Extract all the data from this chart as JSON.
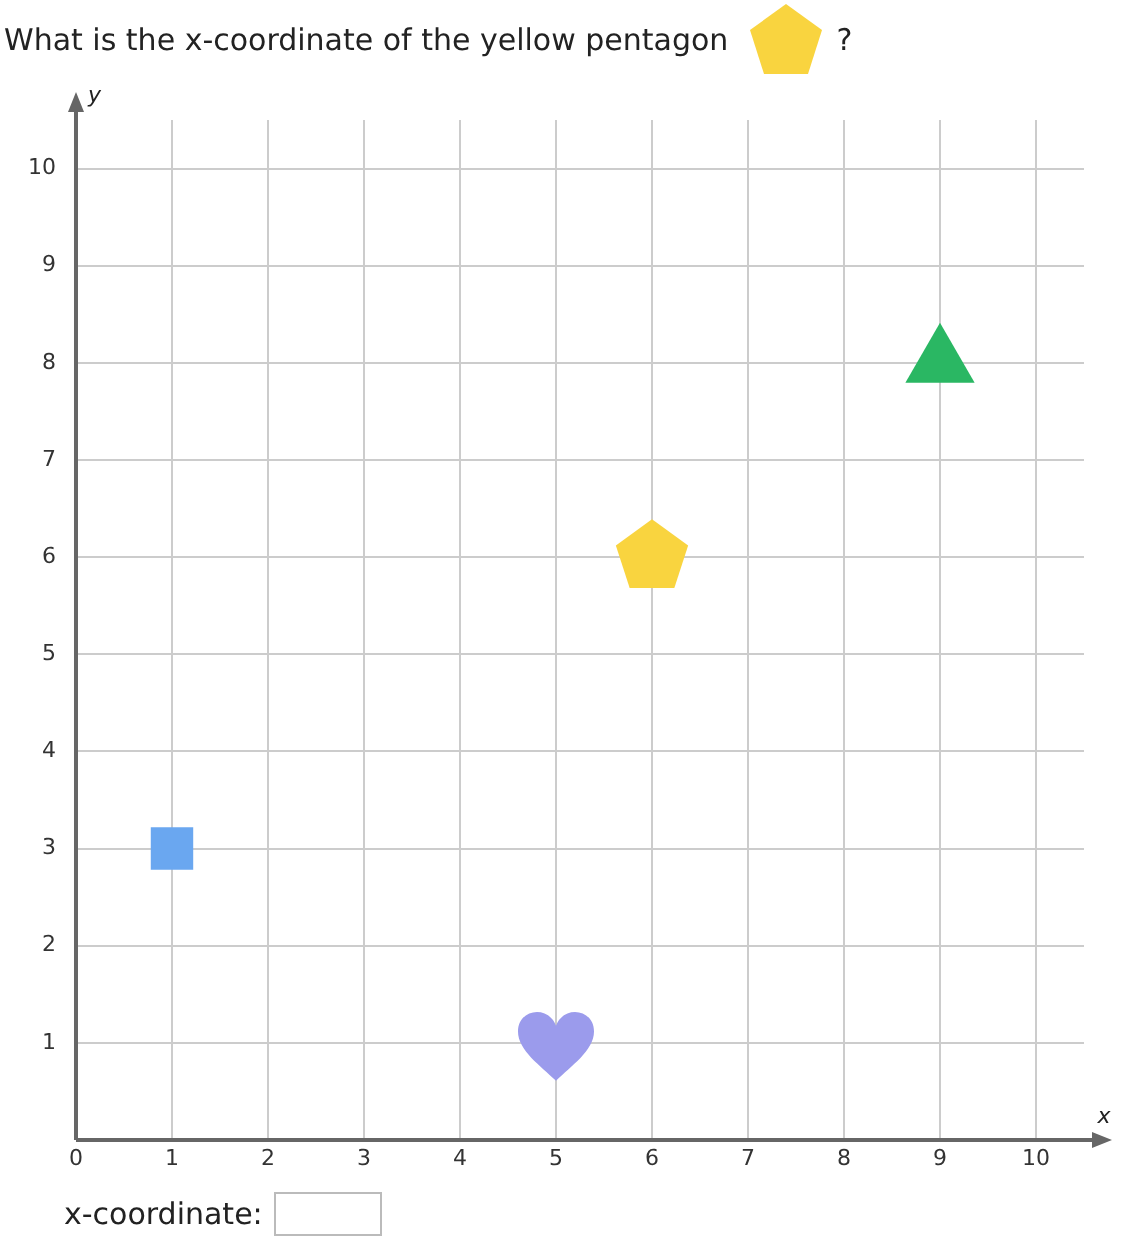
{
  "chart_data": {
    "type": "scatter",
    "title": "What is the x-coordinate of the yellow pentagon ?",
    "xlabel": "x",
    "ylabel": "y",
    "xlim": [
      0,
      10.5
    ],
    "ylim": [
      0,
      10.5
    ],
    "xticks": [
      0,
      1,
      2,
      3,
      4,
      5,
      6,
      7,
      8,
      9,
      10
    ],
    "yticks": [
      {
        "value": 0,
        "label": null
      },
      1,
      2,
      3,
      4,
      5,
      6,
      7,
      8,
      9,
      10
    ],
    "grid": true,
    "series": [
      {
        "color": "#6aa7f0",
        "marker": "square",
        "x": [
          1
        ],
        "values": [
          3
        ]
      },
      {
        "color": "#9b9bec",
        "x": [
          5
        ],
        "values": [
          1
        ]
      },
      {
        "color": "#f9d43f",
        "x": [
          6
        ],
        "values": [
          6
        ]
      },
      {
        "color": "#2ab763",
        "marker": "triangle",
        "x": [
          9
        ],
        "values": [
          8
        ]
      }
    ],
    "annotations": [
      "x-coordinate:"
    ]
  }
}
